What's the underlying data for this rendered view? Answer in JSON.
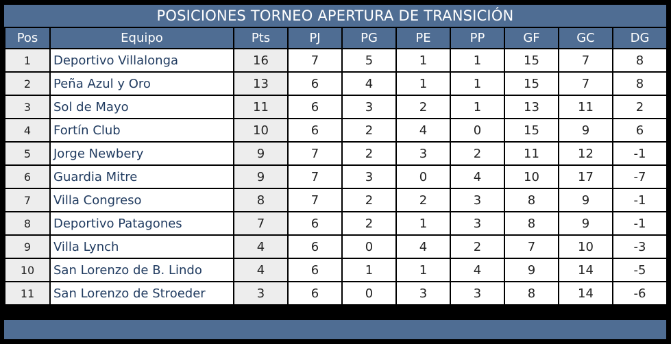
{
  "title": "POSICIONES TORNEO APERTURA DE TRANSICIÓN",
  "columns": [
    "Pos",
    "Equipo",
    "Pts",
    "PJ",
    "PG",
    "PE",
    "PP",
    "GF",
    "GC",
    "DG"
  ],
  "rows": [
    [
      "1",
      "Deportivo Villalonga",
      "16",
      "7",
      "5",
      "1",
      "1",
      "15",
      "7",
      "8"
    ],
    [
      "2",
      "Peña Azul y Oro",
      "13",
      "6",
      "4",
      "1",
      "1",
      "15",
      "7",
      "8"
    ],
    [
      "3",
      "Sol de Mayo",
      "11",
      "6",
      "3",
      "2",
      "1",
      "13",
      "11",
      "2"
    ],
    [
      "4",
      "Fortín Club",
      "10",
      "6",
      "2",
      "4",
      "0",
      "15",
      "9",
      "6"
    ],
    [
      "5",
      "Jorge Newbery",
      "9",
      "7",
      "2",
      "3",
      "2",
      "11",
      "12",
      "-1"
    ],
    [
      "6",
      "Guardia Mitre",
      "9",
      "7",
      "3",
      "0",
      "4",
      "10",
      "17",
      "-7"
    ],
    [
      "7",
      "Villa Congreso",
      "8",
      "7",
      "2",
      "2",
      "3",
      "8",
      "9",
      "-1"
    ],
    [
      "8",
      "Deportivo Patagones",
      "7",
      "6",
      "2",
      "1",
      "3",
      "8",
      "9",
      "-1"
    ],
    [
      "9",
      "Villa Lynch",
      "4",
      "6",
      "0",
      "4",
      "2",
      "7",
      "10",
      "-3"
    ],
    [
      "10",
      "San Lorenzo de B. Lindo",
      "4",
      "6",
      "1",
      "1",
      "4",
      "9",
      "14",
      "-5"
    ],
    [
      "11",
      "San Lorenzo de Stroeder",
      "3",
      "6",
      "0",
      "3",
      "3",
      "8",
      "14",
      "-6"
    ]
  ],
  "colors": {
    "header_bg": "#4f6d93",
    "header_text": "#ffffff",
    "shaded_cell": "#ededed",
    "team_text": "#1f3a5f",
    "border": "#000000"
  }
}
